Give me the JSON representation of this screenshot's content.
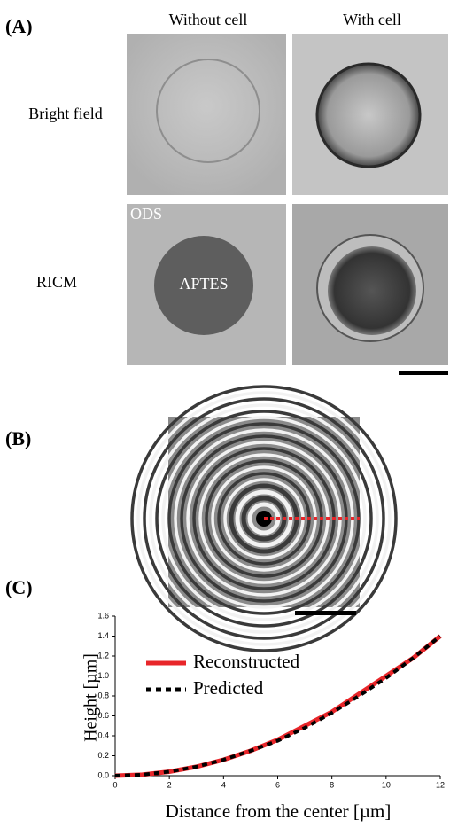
{
  "panel_a": {
    "label": "(A)",
    "columns": [
      "Without cell",
      "With cell"
    ],
    "rows": [
      "Bright field",
      "RICM"
    ],
    "annotations": [
      "ODS",
      "APTES"
    ]
  },
  "panel_b": {
    "label": "(B)"
  },
  "chart_data": {
    "type": "line",
    "label": "(C)",
    "x_label": "Distance from the center [µm]",
    "y_label": "Height [µm]",
    "x": [
      0,
      1,
      2,
      3,
      4,
      5,
      6,
      7,
      8,
      9,
      10,
      11,
      12
    ],
    "series": [
      {
        "name": "Reconstructed",
        "color": "#e8262a",
        "line_style": "solid",
        "values": [
          0,
          0.01,
          0.04,
          0.09,
          0.16,
          0.25,
          0.36,
          0.5,
          0.64,
          0.82,
          1.0,
          1.18,
          1.4
        ]
      },
      {
        "name": "Predicted",
        "color": "#000000",
        "line_style": "dotted",
        "values": [
          0,
          0.01,
          0.04,
          0.09,
          0.16,
          0.25,
          0.35,
          0.48,
          0.63,
          0.8,
          0.98,
          1.18,
          1.4
        ]
      }
    ],
    "xlim": [
      0,
      12
    ],
    "xticks": [
      0,
      2,
      4,
      6,
      8,
      10,
      12
    ],
    "ylim": [
      0,
      1.6
    ],
    "yticks": [
      {
        "value": 0,
        "label": "0.0"
      },
      0.2,
      0.4,
      0.6,
      0.8,
      {
        "value": 1,
        "label": "1.0"
      },
      1.2,
      1.4,
      1.6
    ],
    "legend": "upper left"
  }
}
